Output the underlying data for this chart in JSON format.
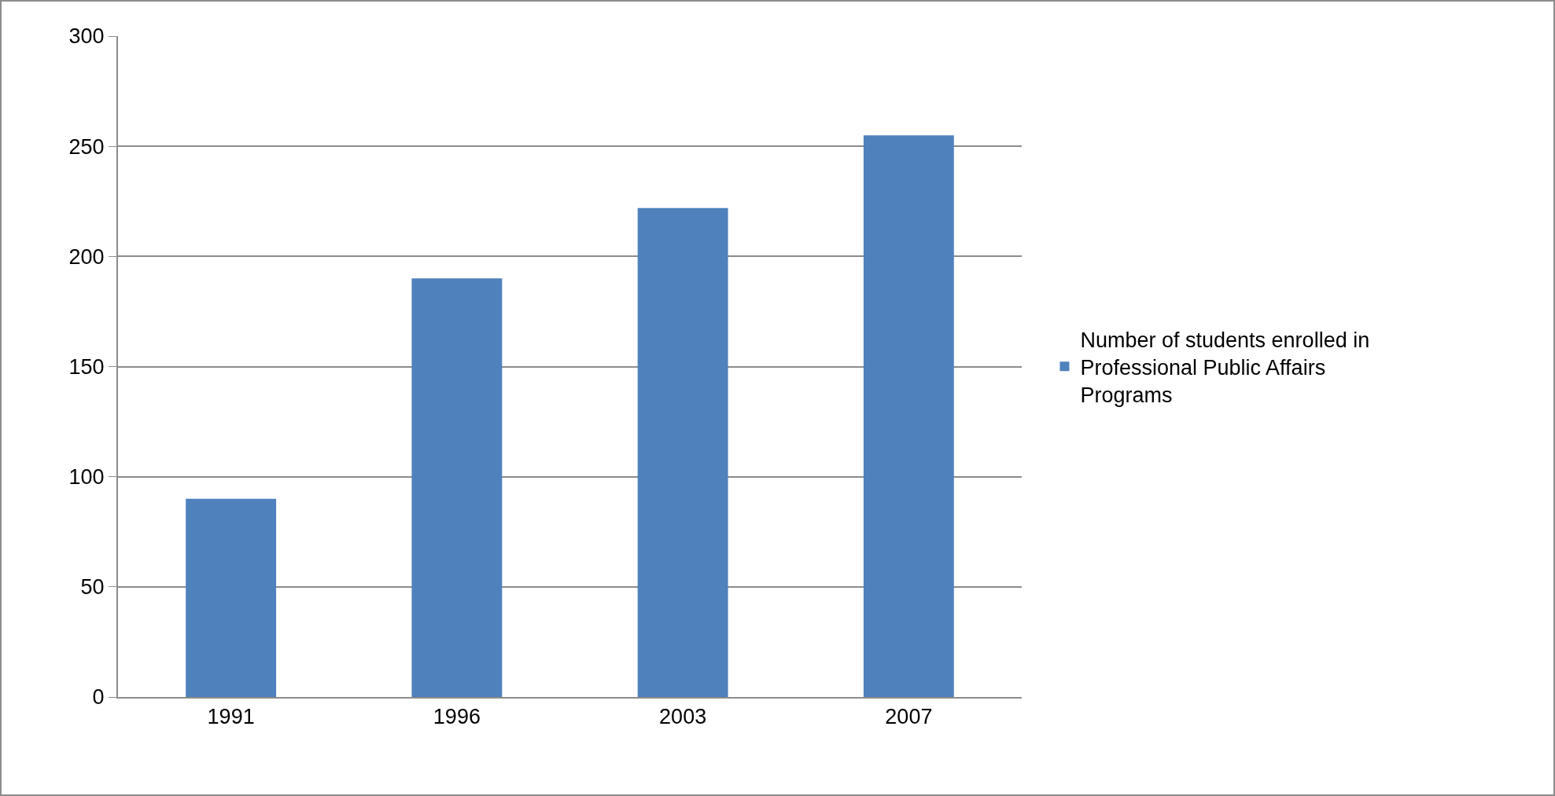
{
  "chart_data": {
    "type": "bar",
    "categories": [
      "1991",
      "1996",
      "2003",
      "2007"
    ],
    "series": [
      {
        "name": "Number of students enrolled in Professional Public Affairs Programs",
        "color": "#4f81bd",
        "values": [
          90,
          190,
          222,
          255
        ]
      }
    ],
    "ylim": [
      0,
      300
    ],
    "yticks": [
      0,
      50,
      100,
      150,
      200,
      250,
      300
    ],
    "grid": "y",
    "legend": "right"
  }
}
